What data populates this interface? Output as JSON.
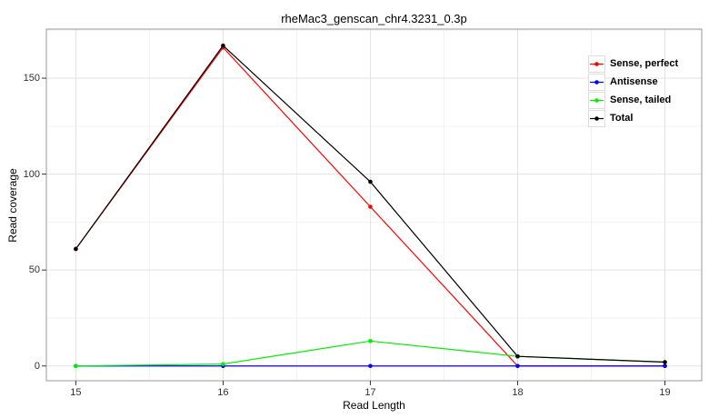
{
  "chart_data": {
    "type": "line",
    "title": "rheMac3_genscan_chr4.3231_0.3p",
    "xlabel": "Read Length",
    "ylabel": "Read coverage",
    "x": [
      15,
      16,
      17,
      18,
      19
    ],
    "series": [
      {
        "name": "Sense, perfect",
        "color": "#ff0000",
        "values": [
          61,
          166,
          83,
          0,
          0
        ]
      },
      {
        "name": "Antisense",
        "color": "#0000ff",
        "values": [
          0,
          0,
          0,
          0,
          0
        ]
      },
      {
        "name": "Sense, tailed",
        "color": "#00ee00",
        "values": [
          0,
          1,
          13,
          5,
          2
        ]
      },
      {
        "name": "Total",
        "color": "#000000",
        "values": [
          61,
          167,
          96,
          5,
          2
        ]
      }
    ],
    "xticks": [
      15,
      16,
      17,
      18,
      19
    ],
    "yticks": [
      0,
      50,
      100,
      150
    ],
    "x_minor": [
      15.5,
      16.5,
      17.5,
      18.5
    ],
    "y_minor": [
      25,
      75,
      125,
      175
    ],
    "xlim": [
      14.8,
      19.25
    ],
    "ylim": [
      -7.7,
      175.6
    ],
    "grid": true,
    "legend_position": "top-right",
    "marker": "circle"
  },
  "style": {
    "background": "#ffffff",
    "panel_background": "#ffffff",
    "panel_border": "#999999",
    "major_grid": "#e2e2e2",
    "minor_grid": "#f2f2f2",
    "tick_color": "#333333",
    "tick_label_color": "#303030",
    "text_color": "#000000"
  }
}
